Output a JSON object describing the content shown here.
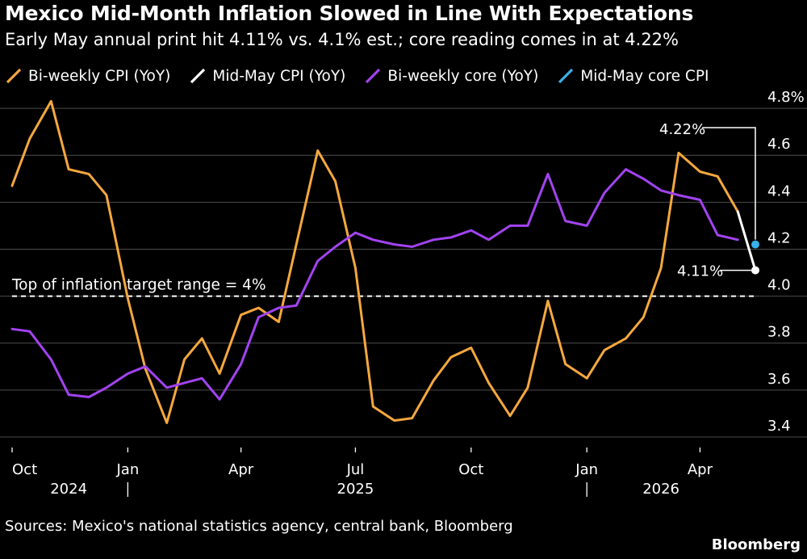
{
  "title": "Mexico Mid-Month Inflation Slowed in Line With Expectations",
  "subtitle": "Early May annual print hit 4.11% vs. 4.1% est.; core reading comes in at 4.22%",
  "source": "Sources: Mexico's national statistics agency, central bank, Bloomberg",
  "brand": "Bloomberg",
  "colors": {
    "background": "#000000",
    "grid": "#4d4d4d",
    "text": "#ffffff",
    "cpi": "#f5a83e",
    "mid_may_cpi": "#ffffff",
    "core": "#a243f0",
    "mid_may_core": "#36b0eb"
  },
  "chart_data": {
    "type": "line",
    "x_axis": {
      "type": "date",
      "range": [
        "2024-10-01",
        "2026-05-15"
      ],
      "ticks": [
        {
          "date": "2024-10-01",
          "label": "Oct"
        },
        {
          "date": "2025-01-01",
          "label": "Jan"
        },
        {
          "date": "2025-04-01",
          "label": "Apr"
        },
        {
          "date": "2025-07-01",
          "label": "Jul"
        },
        {
          "date": "2025-10-01",
          "label": "Oct"
        },
        {
          "date": "2026-01-01",
          "label": "Jan"
        },
        {
          "date": "2026-04-01",
          "label": "Apr"
        }
      ],
      "year_labels": [
        {
          "label": "2024",
          "date": "2024-11-15"
        },
        {
          "label": "2025",
          "date": "2025-07-01"
        },
        {
          "label": "2026",
          "date": "2026-03-01"
        }
      ],
      "year_separators": [
        "2025-01-01",
        "2026-01-01"
      ]
    },
    "y_axis": {
      "range": [
        3.3,
        4.9
      ],
      "ticks": [
        3.4,
        3.6,
        3.8,
        4.0,
        4.2,
        4.4,
        4.6,
        4.8
      ],
      "tick_labels": [
        "3.4",
        "3.6",
        "3.8",
        "4.0",
        "4.2",
        "4.4",
        "4.6",
        "4.8%"
      ],
      "grid": true,
      "position": "right"
    },
    "legend": {
      "placement": "top-left"
    },
    "series": [
      {
        "name": "Bi-weekly CPI (YoY)",
        "key": "cpi",
        "x": [
          "2024-10-01",
          "2024-10-15",
          "2024-11-01",
          "2024-11-15",
          "2024-12-01",
          "2024-12-15",
          "2025-01-01",
          "2025-01-15",
          "2025-02-01",
          "2025-02-15",
          "2025-03-01",
          "2025-03-15",
          "2025-04-01",
          "2025-04-15",
          "2025-05-01",
          "2025-05-15",
          "2025-06-01",
          "2025-06-15",
          "2025-07-01",
          "2025-07-15",
          "2025-08-01",
          "2025-08-15",
          "2025-09-01",
          "2025-09-15",
          "2025-10-01",
          "2025-10-15",
          "2025-11-01",
          "2025-11-15",
          "2025-12-01",
          "2025-12-15",
          "2026-01-01",
          "2026-01-15",
          "2026-02-01",
          "2026-02-15",
          "2026-03-01",
          "2026-03-15",
          "2026-04-01",
          "2026-04-15",
          "2026-05-01"
        ],
        "y": [
          4.47,
          4.67,
          4.83,
          4.54,
          4.52,
          4.43,
          3.99,
          3.69,
          3.46,
          3.73,
          3.82,
          3.67,
          3.92,
          3.95,
          3.89,
          4.22,
          4.62,
          4.49,
          4.12,
          3.53,
          3.47,
          3.48,
          3.64,
          3.74,
          3.78,
          3.63,
          3.49,
          3.61,
          3.98,
          3.71,
          3.65,
          3.77,
          3.82,
          3.91,
          4.12,
          4.61,
          4.53,
          4.51,
          4.36
        ]
      },
      {
        "name": "Mid-May CPI (YoY)",
        "key": "mid_may_cpi",
        "x": [
          "2026-05-01",
          "2026-05-15"
        ],
        "y": [
          4.36,
          4.11
        ]
      },
      {
        "name": "Bi-weekly core (YoY)",
        "key": "core",
        "x": [
          "2024-10-01",
          "2024-10-15",
          "2024-11-01",
          "2024-11-15",
          "2024-12-01",
          "2024-12-15",
          "2025-01-01",
          "2025-01-15",
          "2025-02-01",
          "2025-02-15",
          "2025-03-01",
          "2025-03-15",
          "2025-04-01",
          "2025-04-15",
          "2025-05-01",
          "2025-05-15",
          "2025-06-01",
          "2025-06-15",
          "2025-07-01",
          "2025-07-15",
          "2025-08-01",
          "2025-08-15",
          "2025-09-01",
          "2025-09-15",
          "2025-10-01",
          "2025-10-15",
          "2025-11-01",
          "2025-11-15",
          "2025-12-01",
          "2025-12-15",
          "2026-01-01",
          "2026-01-15",
          "2026-02-01",
          "2026-02-15",
          "2026-03-01",
          "2026-03-15",
          "2026-04-01",
          "2026-04-15",
          "2026-05-01"
        ],
        "y": [
          3.86,
          3.85,
          3.73,
          3.58,
          3.57,
          3.61,
          3.67,
          3.7,
          3.61,
          3.63,
          3.65,
          3.56,
          3.71,
          3.91,
          3.95,
          3.96,
          4.15,
          4.21,
          4.27,
          4.24,
          4.22,
          4.21,
          4.24,
          4.25,
          4.28,
          4.24,
          4.3,
          4.3,
          4.52,
          4.32,
          4.3,
          4.44,
          4.54,
          4.5,
          4.45,
          4.43,
          4.41,
          4.26,
          4.24
        ]
      },
      {
        "name": "Mid-May core CPI",
        "key": "mid_may_core",
        "x": [
          "2026-05-15"
        ],
        "y": [
          4.22
        ]
      }
    ],
    "reference_line": {
      "y": 4.0,
      "label": "Top of inflation target range = 4%",
      "style": "dashed"
    },
    "annotations": [
      {
        "label": "4.22%",
        "x": "2026-05-15",
        "y": 4.22
      },
      {
        "label": "4.11%",
        "x": "2026-05-15",
        "y": 4.11
      }
    ]
  }
}
